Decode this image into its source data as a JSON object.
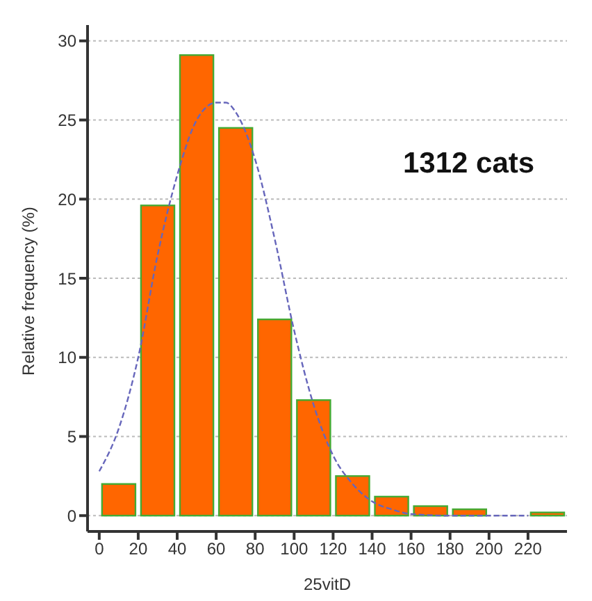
{
  "chart_data": {
    "type": "histogram",
    "xlabel": "25vitD",
    "ylabel": "Relative frequency (%)",
    "annotations": [
      "1312 cats"
    ],
    "bins": [
      0,
      20,
      40,
      60,
      80,
      100,
      120,
      140,
      160,
      180,
      200,
      220,
      240
    ],
    "values": [
      2.0,
      19.6,
      29.1,
      24.5,
      12.4,
      7.3,
      2.5,
      1.2,
      0.6,
      0.4,
      0,
      0.2
    ],
    "color": "#ff6600",
    "series": [
      {
        "type": "line",
        "color": "#6666bb",
        "line_style": "dashed",
        "marker": "none",
        "x": [
          0,
          10,
          20,
          30,
          40,
          50,
          60,
          65,
          70,
          80,
          90,
          100,
          110,
          120,
          130,
          140,
          150,
          160,
          180,
          200,
          220
        ],
        "values": [
          2.8,
          5.5,
          10,
          16.5,
          21.5,
          25,
          26.1,
          26.1,
          25.5,
          22.5,
          17.5,
          11.7,
          7,
          3.8,
          2,
          0.9,
          0.4,
          0.1,
          0,
          0,
          0
        ]
      }
    ],
    "xlim": [
      -6,
      240
    ],
    "xticks": [
      0,
      20,
      40,
      60,
      80,
      100,
      120,
      140,
      160,
      180,
      200,
      220
    ],
    "ylim": [
      -1,
      31
    ],
    "yticks": [
      0,
      5,
      10,
      15,
      20,
      25,
      30
    ],
    "grid": "y"
  }
}
